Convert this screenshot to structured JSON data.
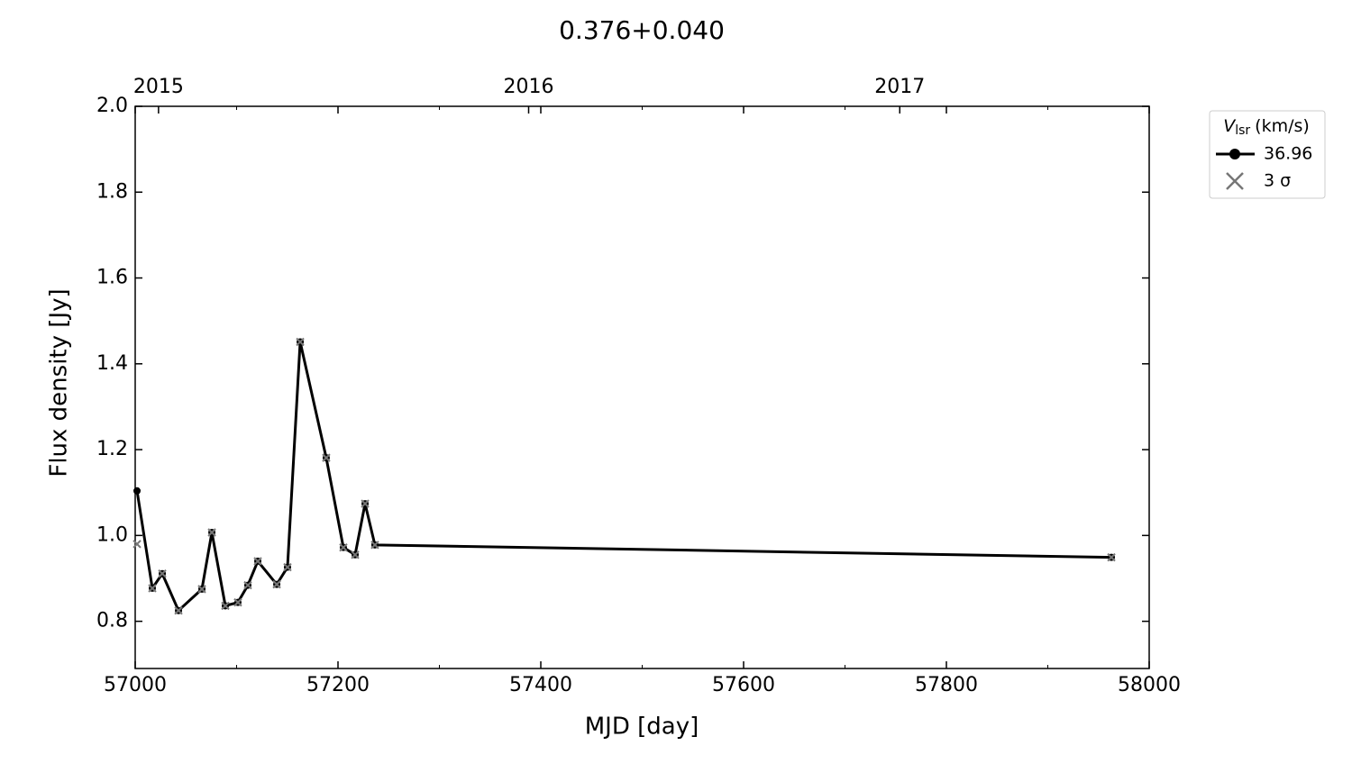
{
  "chart_data": {
    "type": "line",
    "title": "0.376+0.040",
    "xlabel": "MJD [day]",
    "ylabel": "Flux density [Jy]",
    "x": [
      57001.8,
      57016.9,
      57026.7,
      57042.7,
      57065.8,
      57075.6,
      57088.9,
      57101.3,
      57111.1,
      57120.9,
      57139.6,
      57150.2,
      57162.7,
      57188.4,
      57205.3,
      57216.9,
      57226.7,
      57236.4,
      57962.7
    ],
    "series": [
      {
        "name": "36.96",
        "color": "#000000",
        "marker": "circle",
        "line": true,
        "values": [
          1.104,
          0.877,
          0.911,
          0.825,
          0.875,
          1.007,
          0.836,
          0.844,
          0.884,
          0.94,
          0.886,
          0.926,
          1.451,
          1.181,
          0.972,
          0.955,
          1.074,
          0.978,
          0.949
        ]
      },
      {
        "name": "3 σ",
        "color": "#777777",
        "marker": "x",
        "line": false,
        "values": [
          0.98,
          0.877,
          0.911,
          0.825,
          0.875,
          1.007,
          0.836,
          0.844,
          0.884,
          0.94,
          0.886,
          0.926,
          1.451,
          1.181,
          0.972,
          0.955,
          1.074,
          0.978,
          0.949
        ]
      }
    ],
    "legend_title": {
      "symbol": "V",
      "subscript": "lsr",
      "unit": "(km/s)"
    },
    "legend": "outside-upper-right",
    "xlim": [
      57000,
      58000
    ],
    "xticks": [
      57000,
      57200,
      57400,
      57600,
      57800,
      58000
    ],
    "xminorticks": [
      57100,
      57300,
      57500,
      57700,
      57900
    ],
    "x2ticks": [
      {
        "value": 57023,
        "label": "2015"
      },
      {
        "value": 57388,
        "label": "2016"
      },
      {
        "value": 57754,
        "label": "2017"
      }
    ],
    "ylim": [
      0.69,
      2.0
    ],
    "yticks": [
      0.8,
      {
        "value": 1,
        "label": "1.0"
      },
      1.2,
      1.4,
      1.6,
      1.8,
      {
        "value": 2,
        "label": "2.0"
      }
    ],
    "grid": false
  }
}
